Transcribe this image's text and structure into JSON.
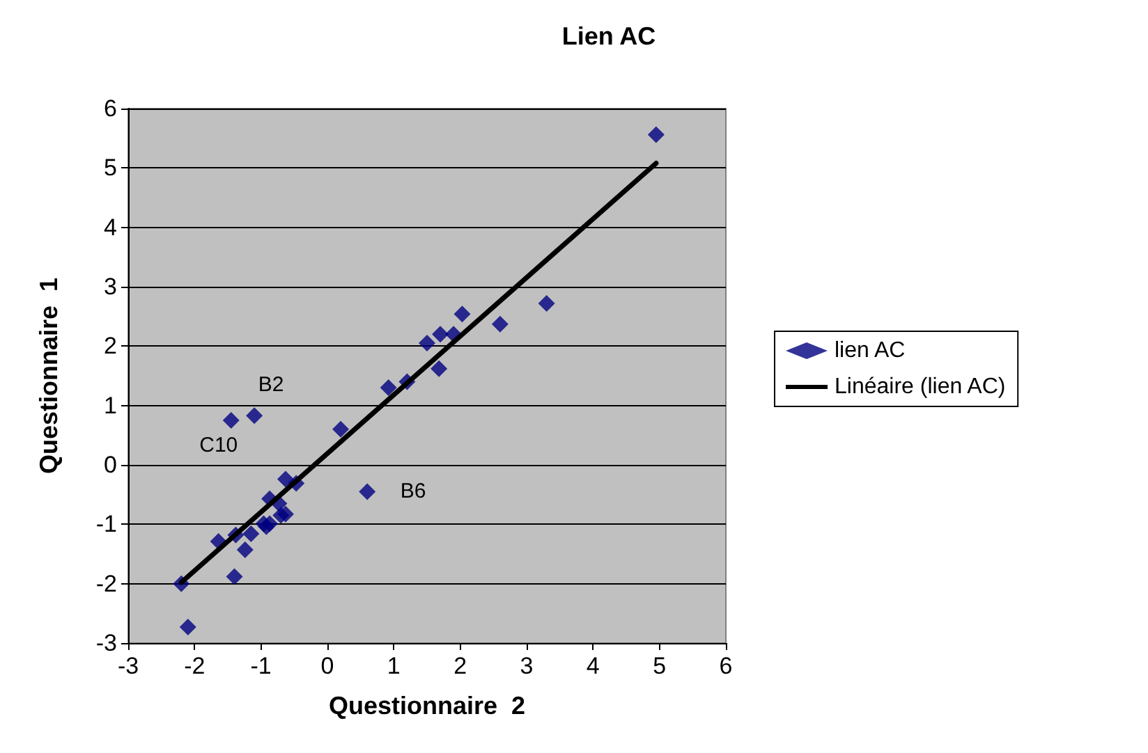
{
  "chart_data": {
    "type": "scatter",
    "title": "Lien AC",
    "xlabel": "Questionnaire  2",
    "ylabel": "Questionnaire  1",
    "xlim": [
      -3,
      6
    ],
    "xticks": [
      -3,
      -2,
      -1,
      0,
      1,
      2,
      3,
      4,
      5,
      6
    ],
    "ylim": [
      -3,
      6
    ],
    "yticks": [
      -3,
      -2,
      -1,
      0,
      1,
      2,
      3,
      4,
      5,
      6
    ],
    "grid": "y",
    "legend": "right",
    "marker": "diamond",
    "series": [
      {
        "name": "lien AC",
        "color": "#000080",
        "x": [
          4.95,
          3.3,
          2.6,
          2.03,
          1.9,
          1.7,
          1.5,
          1.68,
          1.2,
          0.92,
          0.2,
          0.6,
          -1.45,
          -1.1,
          -0.63,
          -0.47,
          -0.87,
          -0.73,
          -0.63,
          -0.7,
          -0.87,
          -0.96,
          -0.92,
          -1.15,
          -1.38,
          -1.64,
          -1.24,
          -1.4,
          -2.2,
          -2.1
        ],
        "values": [
          5.56,
          2.72,
          2.37,
          2.54,
          2.2,
          2.2,
          2.05,
          1.62,
          1.4,
          1.3,
          0.6,
          -0.45,
          0.75,
          0.83,
          -0.24,
          -0.31,
          -0.57,
          -0.65,
          -0.83,
          -0.85,
          -0.99,
          -0.99,
          -1.04,
          -1.16,
          -1.18,
          -1.29,
          -1.43,
          -1.88,
          -2.0,
          -2.73
        ]
      },
      {
        "name": "Linéaire (lien AC)",
        "type": "line",
        "color": "#000000",
        "marker": "none",
        "line_style": "solid",
        "x": [
          -2.2,
          4.95
        ],
        "values": [
          -1.98,
          5.08
        ]
      }
    ],
    "annotations": [
      {
        "text": "B2",
        "x": -1.1,
        "y": 0.83
      },
      {
        "text": "C10",
        "x": -1.45,
        "y": 0.75
      },
      {
        "text": "B6",
        "x": 0.6,
        "y": -0.45
      }
    ]
  }
}
